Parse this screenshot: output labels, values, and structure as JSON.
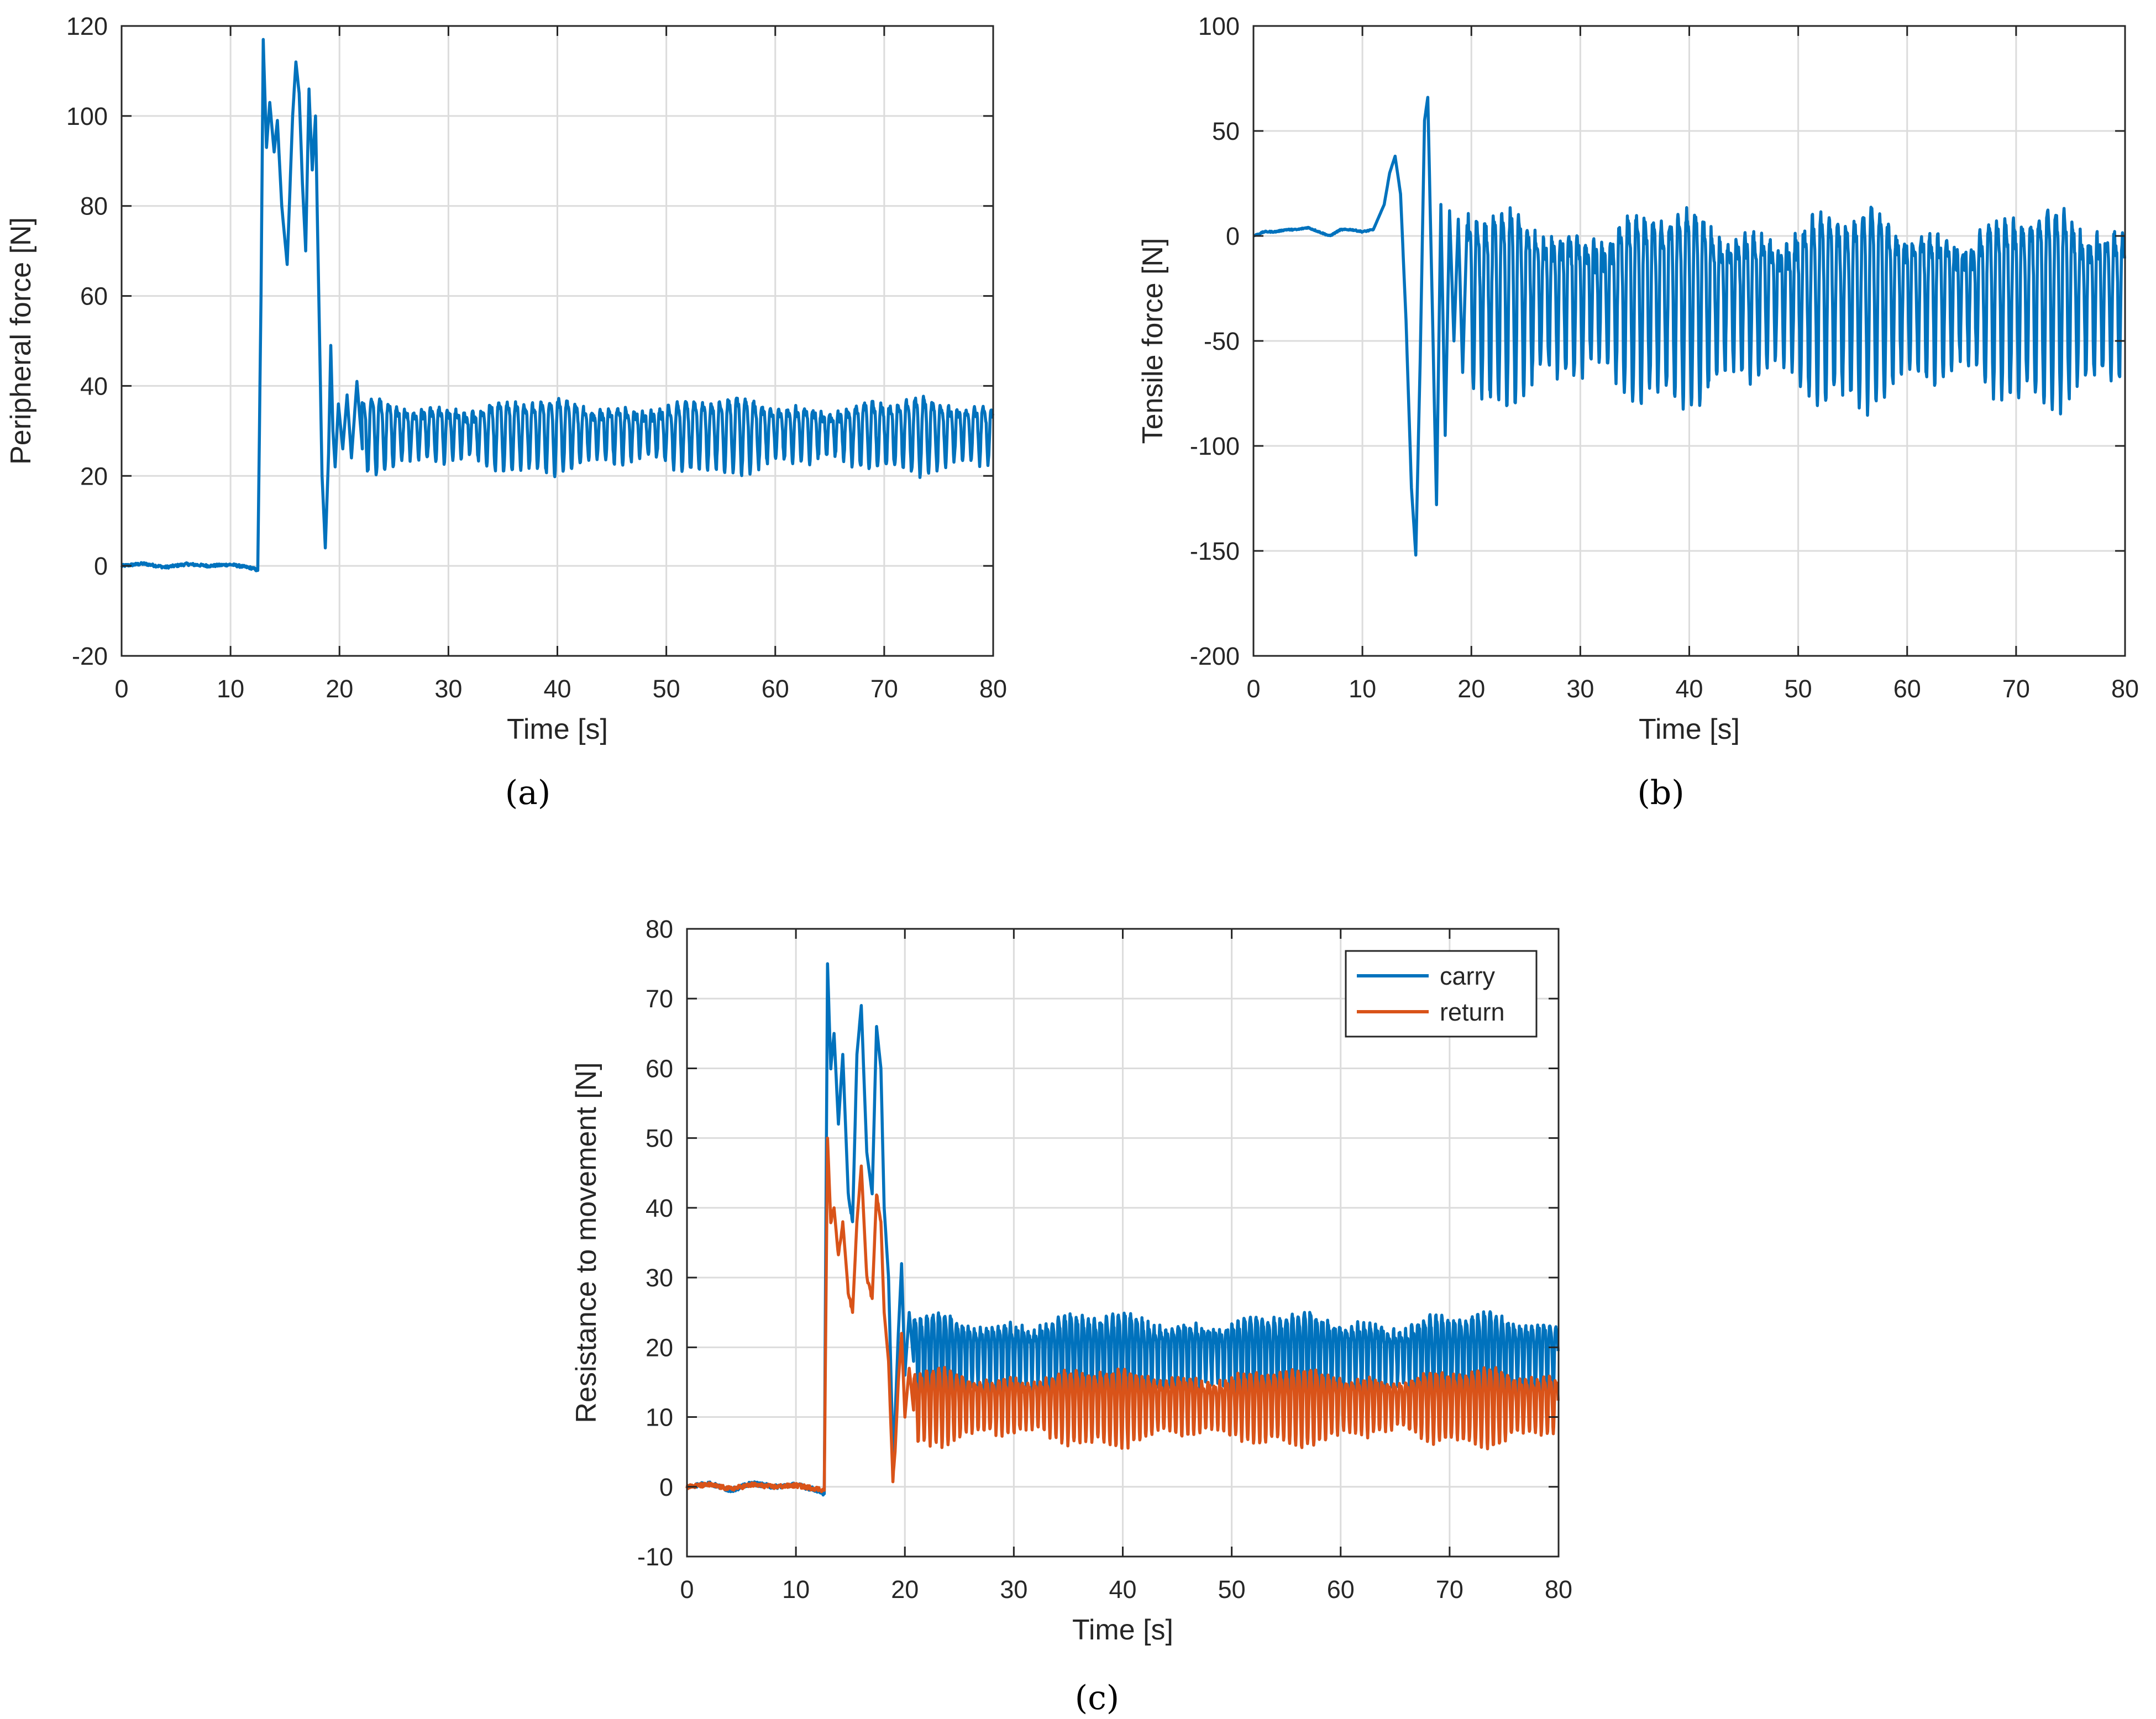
{
  "figure": {
    "panels": [
      {
        "label": "a",
        "caption": "(a)"
      },
      {
        "label": "b",
        "caption": "(b)"
      },
      {
        "label": "c",
        "caption": "(c)"
      }
    ]
  },
  "chart_data": [
    {
      "id": "a",
      "type": "line",
      "title": "",
      "xlabel": "Time [s]",
      "ylabel": "Peripheral force [N]",
      "xlim": [
        0,
        80
      ],
      "ylim": [
        -20,
        120
      ],
      "xticks": [
        0,
        10,
        20,
        30,
        40,
        50,
        60,
        70,
        80
      ],
      "yticks": [
        -20,
        0,
        20,
        40,
        60,
        80,
        100,
        120
      ],
      "xtick_labels": [
        "0",
        "10",
        "20",
        "30",
        "40",
        "50",
        "60",
        "70",
        "80"
      ],
      "ytick_labels": [
        "-20",
        "0",
        "20",
        "40",
        "60",
        "80",
        "100",
        "120"
      ],
      "grid": true,
      "legend": null,
      "series": [
        {
          "name": "Peripheral force",
          "color": "#0072BD",
          "x": [
            0,
            2,
            4,
            6,
            8,
            10,
            12,
            12.5,
            12.8,
            13.0,
            13.3,
            13.6,
            14.0,
            14.3,
            14.7,
            15.2,
            15.7,
            16.0,
            16.3,
            16.6,
            16.9,
            17.2,
            17.5,
            17.8,
            18.1,
            18.4,
            18.7,
            19.0,
            19.2,
            19.4,
            19.6,
            19.9,
            20.3,
            20.7,
            21.1,
            21.6,
            22.1
          ],
          "values": [
            0,
            0.5,
            -0.3,
            0.4,
            0,
            0.3,
            -0.5,
            -1,
            60,
            117,
            93,
            103,
            92,
            99,
            80,
            67,
            100,
            112,
            105,
            85,
            70,
            106,
            88,
            100,
            60,
            20,
            4,
            25,
            49,
            30,
            22,
            36,
            26,
            38,
            24,
            41,
            26
          ],
          "oscillation": {
            "from": 22,
            "to": 80,
            "center": 30.5,
            "amplitude": 6,
            "period": 0.78
          }
        }
      ]
    },
    {
      "id": "b",
      "type": "line",
      "title": "",
      "xlabel": "Time [s]",
      "ylabel": "Tensile force [N]",
      "xlim": [
        0,
        80
      ],
      "ylim": [
        -200,
        100
      ],
      "xticks": [
        0,
        10,
        20,
        30,
        40,
        50,
        60,
        70,
        80
      ],
      "yticks": [
        -200,
        -150,
        -100,
        -50,
        0,
        50,
        100
      ],
      "xtick_labels": [
        "0",
        "10",
        "20",
        "30",
        "40",
        "50",
        "60",
        "70",
        "80"
      ],
      "ytick_labels": [
        "-200",
        "-150",
        "-100",
        "-50",
        "0",
        "50",
        "100"
      ],
      "grid": true,
      "legend": null,
      "series": [
        {
          "name": "Tensile force",
          "color": "#0072BD",
          "x": [
            0,
            1,
            2,
            3,
            4,
            5,
            6,
            7,
            8,
            9,
            10,
            11,
            12,
            12.5,
            13.0,
            13.5,
            14.0,
            14.5,
            14.9,
            15.3,
            15.7,
            16.0,
            16.4,
            16.8,
            17.2,
            17.6,
            18.0,
            18.4,
            18.8,
            19.2,
            19.6
          ],
          "values": [
            0,
            2,
            2,
            3,
            3,
            4,
            2,
            0,
            3,
            3,
            2,
            3,
            15,
            30,
            38,
            20,
            -40,
            -120,
            -152,
            -60,
            55,
            66,
            -30,
            -128,
            15,
            -95,
            12,
            -50,
            8,
            -65,
            5
          ],
          "oscillation": {
            "from": 19.6,
            "to": 80,
            "center": -25,
            "amplitude": 34,
            "period": 0.77
          }
        }
      ]
    },
    {
      "id": "c",
      "type": "line",
      "title": "",
      "xlabel": "Time [s]",
      "ylabel": "Resistance to movement [N]",
      "xlim": [
        0,
        80
      ],
      "ylim": [
        -10,
        80
      ],
      "xticks": [
        0,
        10,
        20,
        30,
        40,
        50,
        60,
        70,
        80
      ],
      "yticks": [
        -10,
        0,
        10,
        20,
        30,
        40,
        50,
        60,
        70,
        80
      ],
      "xtick_labels": [
        "0",
        "10",
        "20",
        "30",
        "40",
        "50",
        "60",
        "70",
        "80"
      ],
      "ytick_labels": [
        "-10",
        "0",
        "10",
        "20",
        "30",
        "40",
        "50",
        "60",
        "70",
        "80"
      ],
      "grid": true,
      "legend": {
        "position": "top-right",
        "entries": [
          "carry",
          "return"
        ]
      },
      "series": [
        {
          "name": "carry",
          "color": "#0072BD",
          "x": [
            0,
            2,
            4,
            6,
            8,
            10,
            12,
            12.6,
            12.9,
            13.2,
            13.5,
            13.9,
            14.3,
            14.8,
            15.2,
            15.6,
            16.0,
            16.5,
            17.0,
            17.4,
            17.8,
            18.1,
            18.5,
            18.9,
            19.1,
            19.4,
            19.7,
            20.0,
            20.4,
            20.8
          ],
          "values": [
            0,
            0.5,
            -0.5,
            0.5,
            0,
            0.3,
            -0.5,
            -1,
            75,
            60,
            65,
            52,
            62,
            42,
            38,
            62,
            69,
            48,
            42,
            66,
            60,
            40,
            30,
            5,
            10,
            22,
            32,
            16,
            25,
            18
          ],
          "oscillation": {
            "from": 20.8,
            "to": 80,
            "center": 19.5,
            "amplitude": 5,
            "period": 0.55
          }
        },
        {
          "name": "return",
          "color": "#D95319",
          "x": [
            0,
            2,
            4,
            6,
            8,
            10,
            12,
            12.6,
            12.9,
            13.2,
            13.5,
            13.9,
            14.3,
            14.8,
            15.2,
            15.6,
            16.0,
            16.5,
            17.0,
            17.4,
            17.8,
            18.1,
            18.5,
            18.9,
            19.1,
            19.4,
            19.7,
            20.0,
            20.4,
            20.8
          ],
          "values": [
            0,
            0.3,
            -0.3,
            0.3,
            0,
            0.2,
            -0.3,
            -0.5,
            50,
            38,
            40,
            33,
            38,
            28,
            25,
            38,
            46,
            30,
            27,
            42,
            38,
            25,
            18,
            1,
            5,
            15,
            22,
            10,
            17,
            11
          ],
          "oscillation": {
            "from": 20.8,
            "to": 80,
            "center": 12.5,
            "amplitude": 4,
            "period": 0.55
          }
        }
      ]
    }
  ]
}
